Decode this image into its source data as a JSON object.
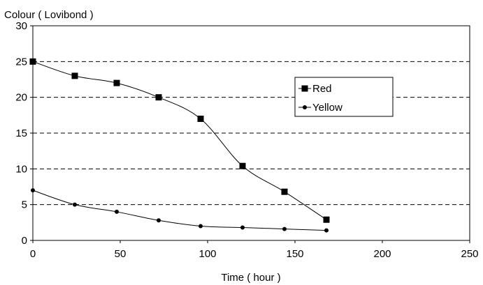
{
  "chart_data": {
    "type": "line",
    "title": "",
    "ylabel": "Colour ( Lovibond )",
    "xlabel": "Time ( hour )",
    "xlim": [
      0,
      250
    ],
    "ylim": [
      0,
      30
    ],
    "xticks": [
      0,
      50,
      100,
      150,
      200,
      250
    ],
    "yticks": [
      0,
      5,
      10,
      15,
      20,
      25,
      30
    ],
    "grid": "horizontal-dashed",
    "legend_position": "right",
    "series": [
      {
        "name": "Red",
        "marker": "square",
        "color": "#000000",
        "x": [
          0,
          24,
          48,
          72,
          96,
          120,
          144,
          168
        ],
        "y": [
          25,
          23,
          22,
          20,
          17,
          10.4,
          6.8,
          2.9
        ]
      },
      {
        "name": "Yellow",
        "marker": "circle",
        "color": "#000000",
        "x": [
          0,
          24,
          48,
          72,
          96,
          120,
          144,
          168
        ],
        "y": [
          7,
          5,
          4,
          2.8,
          2,
          1.8,
          1.6,
          1.4
        ]
      }
    ]
  }
}
